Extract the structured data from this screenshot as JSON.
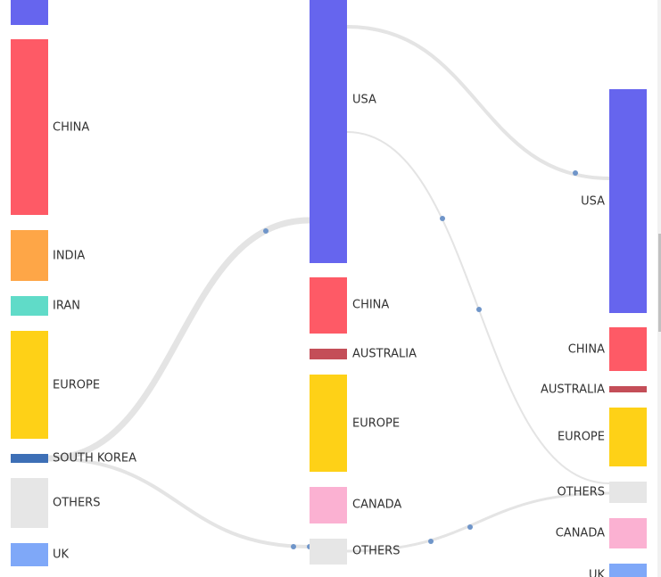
{
  "columns": [
    {
      "nodes": [
        {
          "label": "CHINA"
        },
        {
          "label": "INDIA"
        },
        {
          "label": "IRAN"
        },
        {
          "label": "EUROPE"
        },
        {
          "label": "SOUTH KOREA"
        },
        {
          "label": "OTHERS"
        },
        {
          "label": "UK"
        }
      ]
    },
    {
      "nodes": [
        {
          "label": "USA"
        },
        {
          "label": "CHINA"
        },
        {
          "label": "AUSTRALIA"
        },
        {
          "label": "EUROPE"
        },
        {
          "label": "CANADA"
        },
        {
          "label": "OTHERS"
        }
      ]
    },
    {
      "nodes": [
        {
          "label": "USA"
        },
        {
          "label": "CHINA"
        },
        {
          "label": "AUSTRALIA"
        },
        {
          "label": "EUROPE"
        },
        {
          "label": "OTHERS"
        },
        {
          "label": "CANADA"
        },
        {
          "label": "UK"
        }
      ]
    }
  ]
}
